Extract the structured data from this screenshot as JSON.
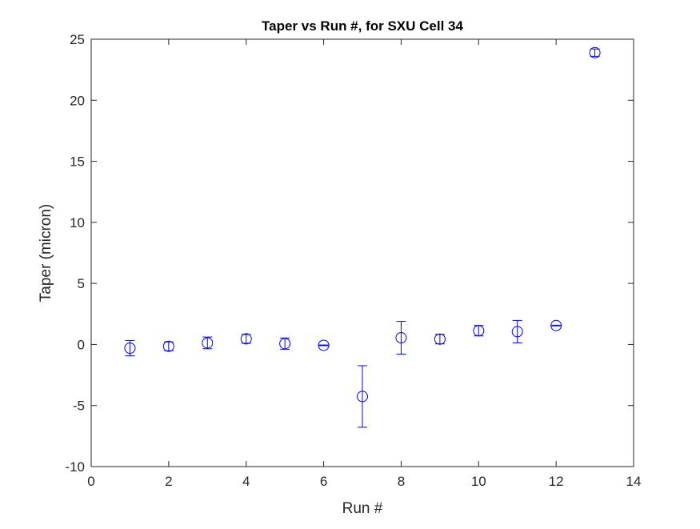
{
  "chart_data": {
    "type": "scatter",
    "title": "Taper vs Run #, for SXU Cell 34",
    "xlabel": "Run #",
    "ylabel": "Taper (micron)",
    "xlim": [
      0,
      14
    ],
    "ylim": [
      -10,
      25
    ],
    "xticks": [
      0,
      2,
      4,
      6,
      8,
      10,
      12,
      14
    ],
    "yticks": [
      -10,
      -5,
      0,
      5,
      10,
      15,
      20,
      25
    ],
    "grid": false,
    "marker": "circle",
    "error_bars": true,
    "color": "#0000ff",
    "x": [
      1,
      2,
      3,
      4,
      5,
      6,
      7,
      8,
      9,
      10,
      11,
      12,
      13
    ],
    "y": [
      -0.3,
      -0.15,
      0.13,
      0.46,
      0.07,
      -0.07,
      -4.26,
      0.55,
      0.44,
      1.13,
      1.05,
      1.55,
      23.9
    ],
    "err": [
      0.63,
      0.36,
      0.48,
      0.36,
      0.46,
      0.03,
      2.52,
      1.34,
      0.39,
      0.43,
      0.92,
      0.03,
      0.3
    ]
  }
}
